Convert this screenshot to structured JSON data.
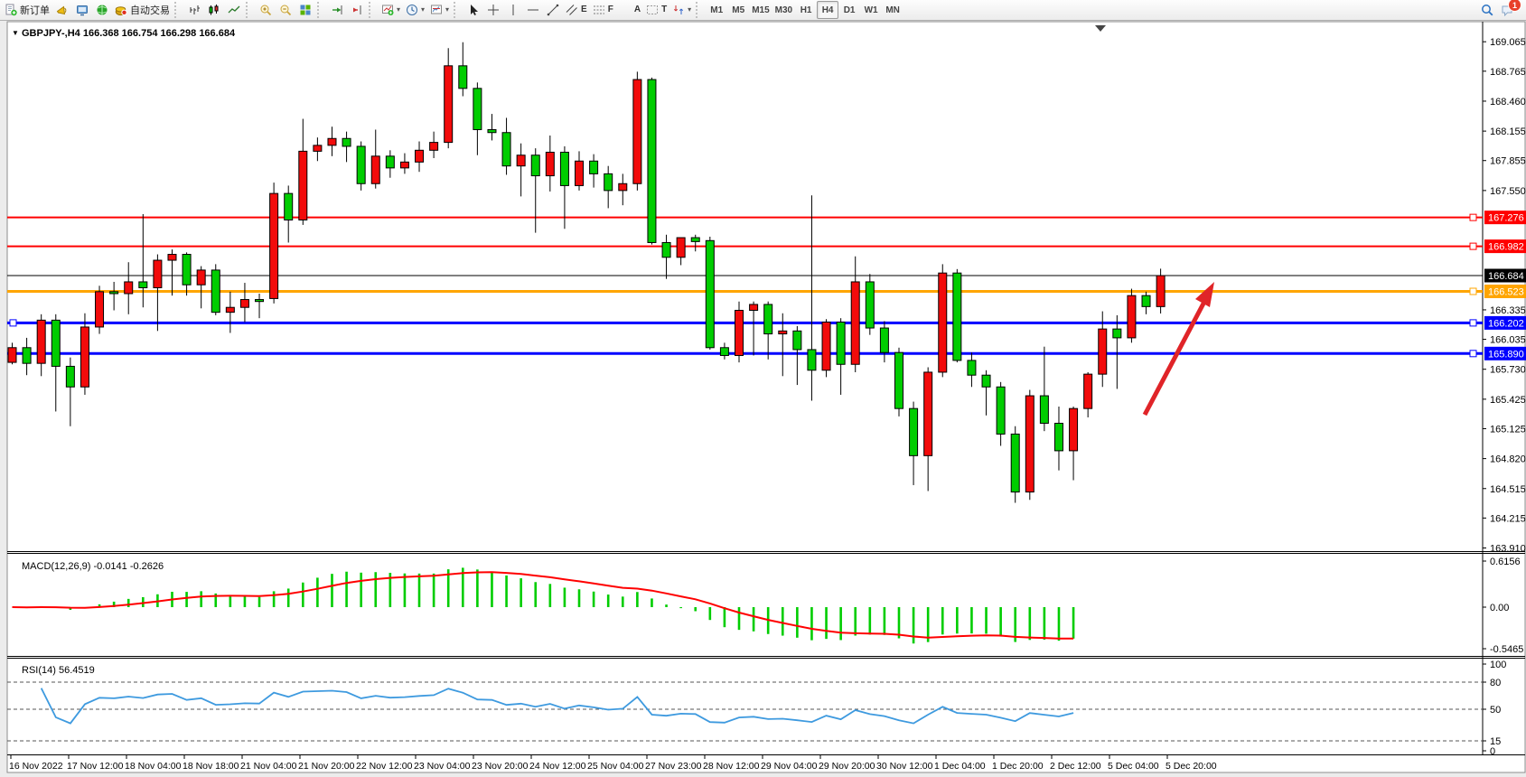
{
  "toolbar": {
    "new_order_label": "新订单",
    "autotrading_label": "自动交易",
    "left_buttons": [
      {
        "name": "new-order-button",
        "icon": "new-order",
        "label_key": "new_order_label"
      },
      {
        "name": "alerts-button",
        "icon": "horn"
      },
      {
        "name": "publisher-button",
        "icon": "monitor"
      },
      {
        "name": "community-button",
        "icon": "globe"
      },
      {
        "name": "autotrading-button",
        "icon": "autotrade",
        "label_key": "autotrading_label"
      }
    ],
    "chart_buttons": [
      {
        "name": "bar-chart-button",
        "icon": "bar-chart"
      },
      {
        "name": "candlestick-button",
        "icon": "candles"
      },
      {
        "name": "line-chart-button",
        "icon": "line-chart"
      },
      {
        "name": "zoom-in-button",
        "icon": "zoom-in"
      },
      {
        "name": "zoom-out-button",
        "icon": "zoom-out"
      },
      {
        "name": "tile-windows-button",
        "icon": "tiles"
      },
      {
        "name": "auto-scroll-button",
        "icon": "autoscroll"
      },
      {
        "name": "chart-shift-button",
        "icon": "chart-shift"
      },
      {
        "name": "indicators-button",
        "icon": "indicators",
        "dropdown": true
      },
      {
        "name": "periods-button",
        "icon": "periods",
        "dropdown": true
      },
      {
        "name": "templates-button",
        "icon": "templates",
        "dropdown": true
      }
    ],
    "draw_buttons": [
      {
        "name": "cursor-tool-button",
        "icon": "cursor"
      },
      {
        "name": "crosshair-tool-button",
        "icon": "crosshair"
      },
      {
        "name": "vertical-line-tool-button",
        "icon": "vline"
      },
      {
        "name": "horizontal-line-tool-button",
        "icon": "hline"
      },
      {
        "name": "trendline-tool-button",
        "icon": "trendline"
      },
      {
        "name": "channel-tool-button",
        "icon": "channel",
        "glyph": "E"
      },
      {
        "name": "fibonacci-tool-button",
        "icon": "fibonacci",
        "glyph": "F"
      },
      {
        "name": "text-tool-button",
        "icon": "text",
        "glyph": "A"
      },
      {
        "name": "label-tool-button",
        "icon": "label",
        "glyph": "T"
      },
      {
        "name": "shapes-tool-button",
        "icon": "shapes",
        "dropdown": true
      }
    ],
    "timeframes": [
      "M1",
      "M5",
      "M15",
      "M30",
      "H1",
      "H4",
      "D1",
      "W1",
      "MN"
    ],
    "active_timeframe": "H4",
    "notification_badge": "1"
  },
  "chart": {
    "symbol_title": "GBPJPY-,H4",
    "ohlc_text": "166.368 166.754 166.298 166.684",
    "macd_label": "MACD(12,26,9) -0.0141 -0.2626",
    "rsi_label": "RSI(14) 56.4519"
  },
  "colors": {
    "bull": "#f20b0b",
    "bear": "#00cd00",
    "macd_hist": "#00cd00",
    "macd_signal": "#ff0000",
    "rsi_line": "#3e9adf",
    "line_red": "#ff0000",
    "line_orange": "#ffa500",
    "line_blue": "#0000ff",
    "current_price_bg": "#000000",
    "arrow": "#e02428"
  },
  "price_axis": {
    "ticks": [
      "169.065",
      "168.765",
      "168.460",
      "168.155",
      "167.855",
      "167.550",
      "166.335",
      "166.035",
      "165.730",
      "165.425",
      "165.125",
      "164.820",
      "164.515",
      "164.215",
      "163.910"
    ]
  },
  "lines": [
    {
      "name": "resistance-1",
      "price": 167.276,
      "label": "167.276",
      "color": "red",
      "width": 2,
      "handles": "right"
    },
    {
      "name": "resistance-2",
      "price": 166.982,
      "label": "166.982",
      "color": "red",
      "width": 2,
      "handles": "right"
    },
    {
      "name": "current-price",
      "price": 166.684,
      "label": "166.684",
      "color": "black",
      "width": 1,
      "handles": "none"
    },
    {
      "name": "pivot-orange",
      "price": 166.523,
      "label": "166.523",
      "color": "orange",
      "width": 3,
      "handles": "right"
    },
    {
      "name": "support-1",
      "price": 166.202,
      "label": "166.202",
      "color": "blue",
      "width": 3,
      "handles": "both"
    },
    {
      "name": "support-2",
      "price": 165.89,
      "label": "165.890",
      "color": "blue",
      "width": 3,
      "handles": "both"
    }
  ],
  "macd_axis": [
    "0.6156",
    "0.00",
    "-0.5465"
  ],
  "rsi_axis": [
    "100",
    "80",
    "50",
    "15",
    "0"
  ],
  "time_axis": [
    "16 Nov 2022",
    "17 Nov 12:00",
    "18 Nov 04:00",
    "18 Nov 18:00",
    "21 Nov 04:00",
    "21 Nov 20:00",
    "22 Nov 12:00",
    "23 Nov 04:00",
    "23 Nov 20:00",
    "24 Nov 12:00",
    "25 Nov 04:00",
    "27 Nov 23:00",
    "28 Nov 12:00",
    "29 Nov 04:00",
    "29 Nov 20:00",
    "30 Nov 12:00",
    "1 Dec 04:00",
    "1 Dec 20:00",
    "2 Dec 12:00",
    "5 Dec 04:00",
    "5 Dec 20:00"
  ],
  "chart_data": {
    "type": "candlestick",
    "title": "GBPJPY-,H4",
    "symbol": "GBPJPY",
    "period": "H4",
    "color_convention": "red = bullish, green = bearish",
    "ylim": [
      163.91,
      169.23
    ],
    "current_bar_ohlc": {
      "open": 166.368,
      "high": 166.754,
      "low": 166.298,
      "close": 166.684
    },
    "bars": [
      [
        165.8,
        166.0,
        165.78,
        165.95
      ],
      [
        165.95,
        166.05,
        165.67,
        165.79
      ],
      [
        165.79,
        166.29,
        165.66,
        166.23
      ],
      [
        166.23,
        166.29,
        165.3,
        165.76
      ],
      [
        165.76,
        165.85,
        165.15,
        165.55
      ],
      [
        165.55,
        166.3,
        165.47,
        166.16
      ],
      [
        166.16,
        166.58,
        166.09,
        166.52
      ],
      [
        166.52,
        166.62,
        166.33,
        166.5
      ],
      [
        166.5,
        166.82,
        166.29,
        166.62
      ],
      [
        166.62,
        167.31,
        166.36,
        166.56
      ],
      [
        166.56,
        166.9,
        166.12,
        166.84
      ],
      [
        166.84,
        166.95,
        166.48,
        166.9
      ],
      [
        166.9,
        166.92,
        166.48,
        166.59
      ],
      [
        166.59,
        166.78,
        166.35,
        166.74
      ],
      [
        166.74,
        166.8,
        166.28,
        166.31
      ],
      [
        166.31,
        166.52,
        166.1,
        166.36
      ],
      [
        166.36,
        166.61,
        166.21,
        166.44
      ],
      [
        166.44,
        166.5,
        166.25,
        166.42
      ],
      [
        166.45,
        167.63,
        166.4,
        167.52
      ],
      [
        167.52,
        167.6,
        167.02,
        167.25
      ],
      [
        167.25,
        168.28,
        167.2,
        167.95
      ],
      [
        167.95,
        168.09,
        167.85,
        168.01
      ],
      [
        168.01,
        168.2,
        167.9,
        168.08
      ],
      [
        168.08,
        168.15,
        167.84,
        168.0
      ],
      [
        168.0,
        168.05,
        167.55,
        167.62
      ],
      [
        167.62,
        168.17,
        167.57,
        167.9
      ],
      [
        167.9,
        167.96,
        167.68,
        167.78
      ],
      [
        167.78,
        167.93,
        167.72,
        167.84
      ],
      [
        167.84,
        168.05,
        167.74,
        167.96
      ],
      [
        167.96,
        168.15,
        167.88,
        168.04
      ],
      [
        168.04,
        169.0,
        167.98,
        168.82
      ],
      [
        168.82,
        169.06,
        168.51,
        168.59
      ],
      [
        168.59,
        168.65,
        167.91,
        168.17
      ],
      [
        168.17,
        168.33,
        168.06,
        168.14
      ],
      [
        168.14,
        168.29,
        167.71,
        167.8
      ],
      [
        167.8,
        168.03,
        167.49,
        167.91
      ],
      [
        167.91,
        167.98,
        167.12,
        167.7
      ],
      [
        167.7,
        168.11,
        167.54,
        167.94
      ],
      [
        167.94,
        168.0,
        167.16,
        167.6
      ],
      [
        167.6,
        167.95,
        167.55,
        167.85
      ],
      [
        167.85,
        167.92,
        167.58,
        167.72
      ],
      [
        167.72,
        167.8,
        167.37,
        167.55
      ],
      [
        167.55,
        167.72,
        167.4,
        167.62
      ],
      [
        167.62,
        168.76,
        167.55,
        168.68
      ],
      [
        168.68,
        168.7,
        167.0,
        167.02
      ],
      [
        167.02,
        167.1,
        166.65,
        166.87
      ],
      [
        166.87,
        167.07,
        166.79,
        167.07
      ],
      [
        167.07,
        167.1,
        166.93,
        167.03
      ],
      [
        167.04,
        167.08,
        165.93,
        165.95
      ],
      [
        165.95,
        166.0,
        165.83,
        165.87
      ],
      [
        165.87,
        166.42,
        165.8,
        166.33
      ],
      [
        166.33,
        166.42,
        165.87,
        166.39
      ],
      [
        166.39,
        166.42,
        165.83,
        166.09
      ],
      [
        166.09,
        166.3,
        165.66,
        166.12
      ],
      [
        166.12,
        166.17,
        165.57,
        165.93
      ],
      [
        165.93,
        167.5,
        165.41,
        165.72
      ],
      [
        165.72,
        166.24,
        165.65,
        166.21
      ],
      [
        166.21,
        166.25,
        165.47,
        165.78
      ],
      [
        165.78,
        166.88,
        165.7,
        166.62
      ],
      [
        166.62,
        166.7,
        166.08,
        166.15
      ],
      [
        166.15,
        166.22,
        165.8,
        165.9
      ],
      [
        165.9,
        165.95,
        165.25,
        165.33
      ],
      [
        165.33,
        165.4,
        164.55,
        164.85
      ],
      [
        164.85,
        165.75,
        164.49,
        165.7
      ],
      [
        165.7,
        166.8,
        165.65,
        166.71
      ],
      [
        166.71,
        166.75,
        165.8,
        165.82
      ],
      [
        165.82,
        165.9,
        165.55,
        165.67
      ],
      [
        165.67,
        165.72,
        165.26,
        165.55
      ],
      [
        165.55,
        165.6,
        164.95,
        165.07
      ],
      [
        165.07,
        165.15,
        164.37,
        164.48
      ],
      [
        164.48,
        165.52,
        164.4,
        165.46
      ],
      [
        165.46,
        165.96,
        165.1,
        165.18
      ],
      [
        165.18,
        165.35,
        164.7,
        164.9
      ],
      [
        164.9,
        165.35,
        164.6,
        165.33
      ],
      [
        165.33,
        165.7,
        165.24,
        165.68
      ],
      [
        165.68,
        166.32,
        165.55,
        166.14
      ],
      [
        166.14,
        166.28,
        165.53,
        166.05
      ],
      [
        166.05,
        166.55,
        166.0,
        166.48
      ],
      [
        166.48,
        166.52,
        166.29,
        166.368
      ],
      [
        166.368,
        166.754,
        166.298,
        166.684
      ]
    ],
    "horizontal_lines": [
      167.276,
      166.982,
      166.684,
      166.523,
      166.202,
      165.89
    ],
    "indicators": [
      {
        "name": "MACD",
        "params": [
          12,
          26,
          9
        ],
        "display_values": [
          -0.0141,
          -0.2626
        ],
        "axis_range": [
          -0.5465,
          0.6156
        ],
        "histogram_color": "green",
        "signal_color": "red"
      },
      {
        "name": "RSI",
        "params": [
          14
        ],
        "display_value": 56.4519,
        "levels": [
          80,
          50,
          15
        ],
        "line_color": "blue"
      }
    ],
    "annotations": [
      {
        "type": "arrow",
        "direction": "up-right",
        "color": "#e02428",
        "meaning": "bullish projection toward 166.52 pivot"
      }
    ],
    "legend_position": "top-left",
    "grid": false
  }
}
